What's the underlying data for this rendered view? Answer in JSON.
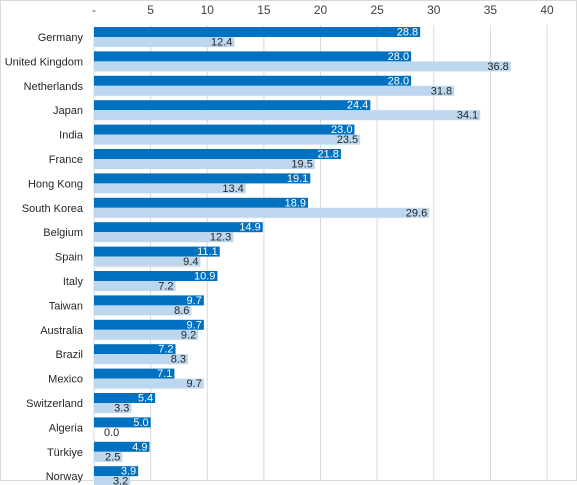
{
  "chart_data": {
    "type": "bar",
    "orientation": "horizontal",
    "categories": [
      "Germany",
      "United Kingdom",
      "Netherlands",
      "Japan",
      "India",
      "France",
      "Hong Kong",
      "South Korea",
      "Belgium",
      "Spain",
      "Italy",
      "Taiwan",
      "Australia",
      "Brazil",
      "Mexico",
      "Switzerland",
      "Algeria",
      "Türkiye",
      "Norway"
    ],
    "category_labels": [
      "Germany",
      "United Kingdom",
      "Netherlands",
      "Japan",
      "India",
      "France",
      "Hong Kong",
      "South Korea",
      "Belgium",
      "Spain",
      "Italy",
      "Taiwan",
      "Australia",
      "Brazil",
      "Mexico",
      "Switzerland",
      "Algeria",
      "Türkiye",
      "Norway"
    ],
    "series": [
      {
        "color": "#0070c0",
        "values": [
          28.8,
          28.0,
          28.0,
          24.4,
          23.0,
          21.8,
          19.1,
          18.9,
          14.9,
          11.1,
          10.9,
          9.7,
          9.7,
          7.2,
          7.1,
          5.4,
          5.0,
          4.9,
          3.9
        ],
        "labels": [
          "28.8",
          "28.0",
          "28.0",
          "24.4",
          "23.0",
          "21.8",
          "19.1",
          "18.9",
          "14.9",
          "11.1",
          "10.9",
          "9.7",
          "9.7",
          "7.2",
          "7.1",
          "5.4",
          "5.0",
          "4.9",
          "3.9"
        ]
      },
      {
        "color": "#bdd7ee",
        "values": [
          12.4,
          36.8,
          31.8,
          34.1,
          23.5,
          19.5,
          13.4,
          29.6,
          12.3,
          9.4,
          7.2,
          8.6,
          9.2,
          8.3,
          9.7,
          3.3,
          0.0,
          2.5,
          3.2
        ],
        "labels": [
          "12.4",
          "36.8",
          "31.8",
          "34.1",
          "23.5",
          "19.5",
          "13.4",
          "29.6",
          "12.3",
          "9.4",
          "7.2",
          "8.6",
          "9.2",
          "8.3",
          "9.7",
          "3.3",
          "0.0",
          "2.5",
          "3.2"
        ]
      }
    ],
    "x_ticks": [
      0,
      5,
      10,
      15,
      20,
      25,
      30,
      35,
      40
    ],
    "x_tick_labels": [
      "-",
      "5",
      "10",
      "15",
      "20",
      "25",
      "30",
      "35",
      "40"
    ],
    "xlim": [
      0,
      40
    ],
    "x_axis_position": "top",
    "grid": true,
    "legend": "none"
  }
}
